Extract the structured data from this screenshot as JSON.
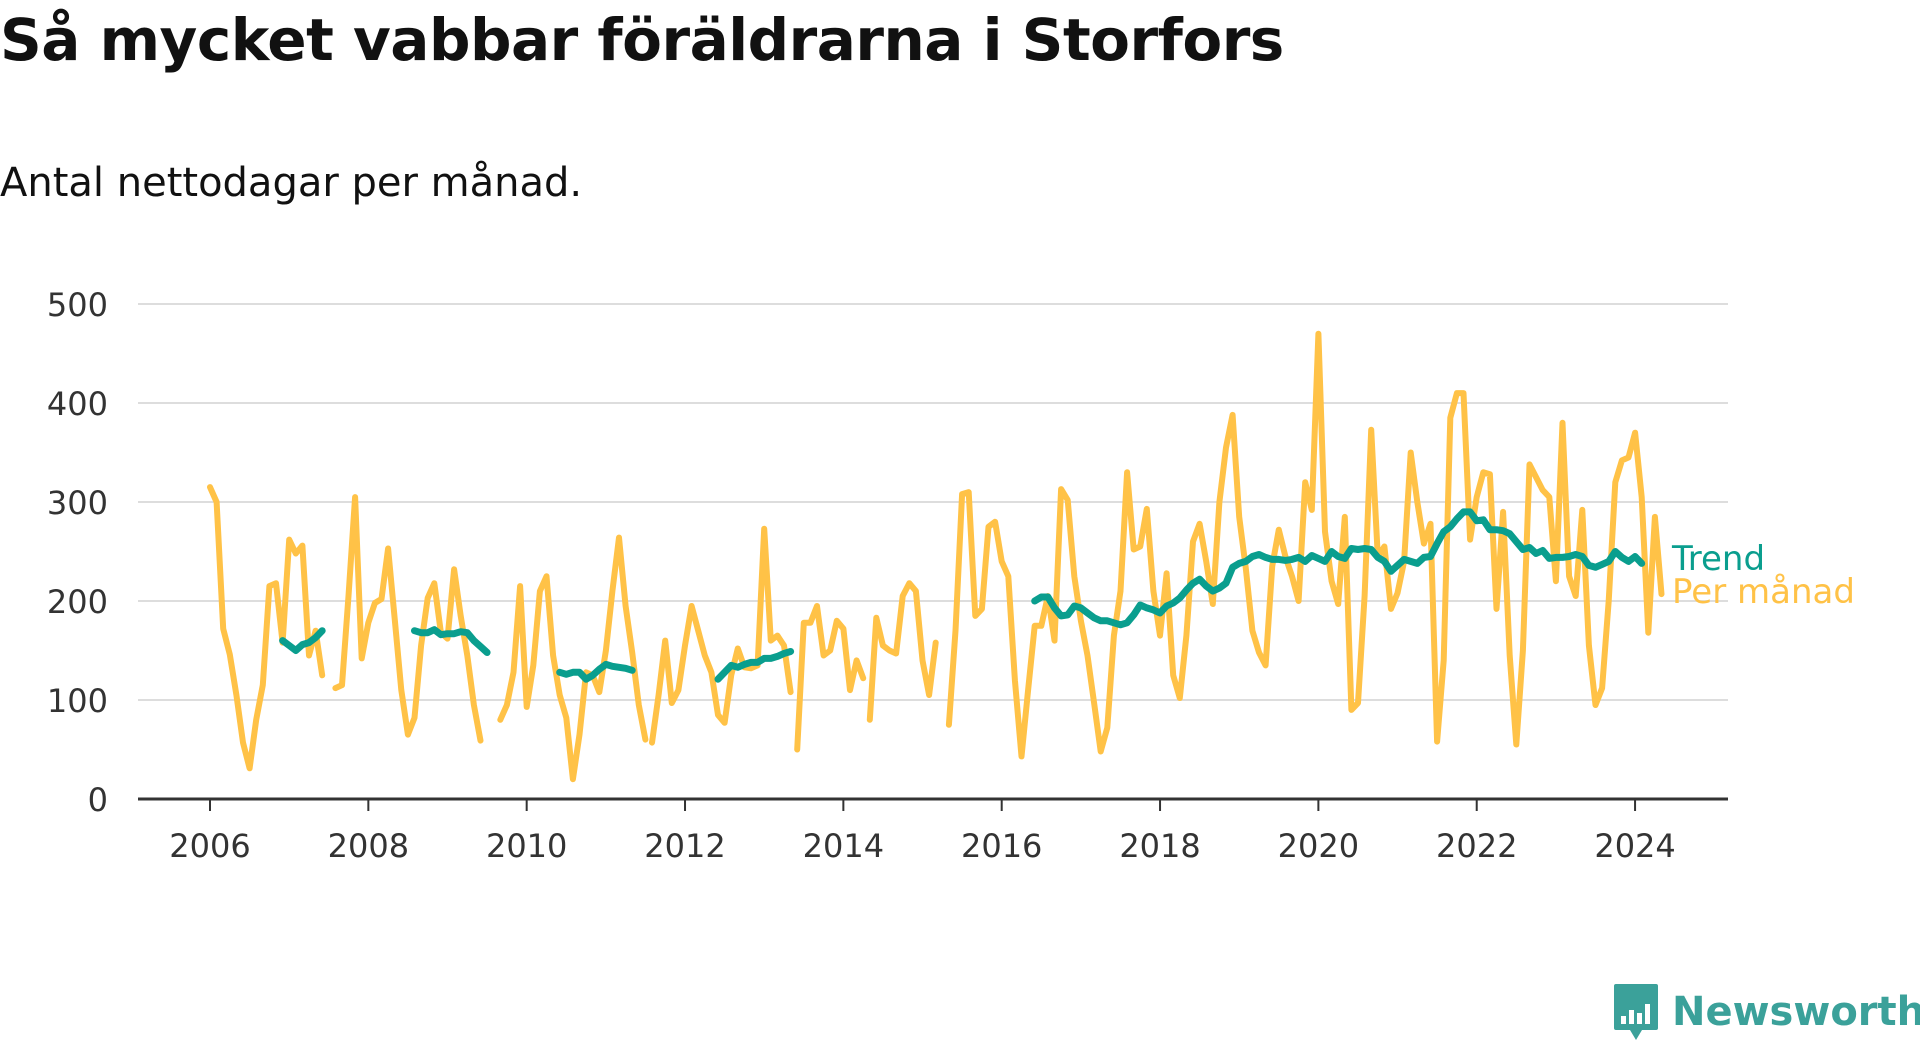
{
  "header": {
    "title": "Så mycket vabbar föräldrarna i Storfors",
    "subtitle": "Antal nettodagar per månad."
  },
  "branding": {
    "name": "Newsworthy",
    "logo_icon": "bar-chart-icon"
  },
  "colors": {
    "monthly": "#ffc247",
    "trend": "#0a9e8e",
    "grid": "#dddddd",
    "axis": "#333333",
    "text": "#333333",
    "brand": "#3ba19a"
  },
  "chart_data": {
    "type": "line",
    "title": "Så mycket vabbar föräldrarna i Storfors",
    "subtitle": "Antal nettodagar per månad.",
    "xlabel": "",
    "ylabel": "",
    "xlim": [
      "2006-01",
      "2024-06"
    ],
    "ylim": [
      0,
      500
    ],
    "x_ticks": [
      "2006",
      "2008",
      "2010",
      "2012",
      "2014",
      "2016",
      "2018",
      "2020",
      "2022",
      "2024"
    ],
    "y_ticks": [
      0,
      100,
      200,
      300,
      400,
      500
    ],
    "grid": "horizontal",
    "legend": "direct labels at line ends",
    "series": [
      {
        "name": "Per månad",
        "color": "#ffc247",
        "segments": [
          {
            "start": "2006-01",
            "values": [
              315,
              300,
              172,
              146,
              105,
              57,
              31,
              80,
              115,
              215,
              218,
              158,
              262,
              248,
              256,
              145,
              170,
              125
            ]
          },
          {
            "start": "2007-08",
            "values": [
              112,
              115,
              205,
              305,
              142,
              178,
              198,
              202,
              253,
              182,
              110,
              65,
              82,
              155,
              203,
              218,
              168,
              162,
              232,
              185,
              145,
              95,
              59
            ]
          },
          {
            "start": "2009-09",
            "values": [
              80,
              95,
              128,
              215,
              93,
              135,
              210,
              225,
              145,
              105,
              82,
              20,
              65,
              128,
              125,
              108,
              150,
              210,
              264,
              195,
              148,
              95,
              60
            ]
          },
          {
            "start": "2011-08",
            "values": [
              57,
              105,
              160,
              97,
              110,
              155,
              195,
              170,
              145,
              128,
              85,
              77,
              125,
              152,
              133,
              132,
              135,
              273,
              160,
              165,
              155,
              108
            ]
          },
          {
            "start": "2013-06",
            "values": [
              50,
              178,
              178,
              195,
              145,
              150,
              180,
              172,
              110,
              140,
              122
            ]
          },
          {
            "start": "2014-05",
            "values": [
              80,
              183,
              155,
              150,
              147,
              205,
              218,
              210,
              140,
              105,
              158
            ]
          },
          {
            "start": "2015-05",
            "values": [
              75,
              170,
              308,
              310,
              185,
              192,
              275,
              280,
              240,
              225,
              120,
              43,
              110,
              175,
              175,
              205,
              160,
              313,
              302,
              225,
              180,
              145,
              97,
              48,
              72,
              165,
              210,
              330,
              252,
              255,
              293,
              210,
              165,
              228,
              125,
              102,
              165,
              260,
              278,
              240,
              197,
              300,
              355,
              388,
              285,
              233,
              170,
              148,
              135,
              235,
              272,
              245,
              225,
              200,
              320,
              292,
              470,
              270,
              220,
              197,
              285,
              90,
              97,
              205,
              373,
              245,
              255,
              192,
              208,
              240,
              350,
              300,
              258,
              278,
              58,
              140,
              385,
              410,
              410,
              262,
              305,
              330,
              328,
              192,
              290,
              145,
              55,
              150,
              338,
              325,
              312,
              305,
              220,
              380,
              225,
              205,
              292,
              155,
              95,
              112,
              200,
              320,
              342,
              345,
              370,
              305,
              168,
              285,
              207
            ]
          }
        ]
      },
      {
        "name": "Trend",
        "color": "#0a9e8e",
        "segments": [
          {
            "start": "2006-12",
            "values": [
              160,
              155,
              150,
              156,
              158,
              163,
              170
            ]
          },
          {
            "start": "2008-08",
            "values": [
              170,
              168,
              168,
              171,
              166,
              167,
              167,
              169,
              168,
              160,
              154,
              148
            ]
          },
          {
            "start": "2010-06",
            "values": [
              128,
              126,
              128,
              128,
              121,
              125,
              131,
              136,
              134,
              133,
              132,
              130
            ]
          },
          {
            "start": "2012-06",
            "values": [
              121,
              128,
              135,
              133,
              136,
              138,
              138,
              142,
              142,
              144,
              147,
              149
            ]
          },
          {
            "start": "2016-06",
            "values": [
              200,
              204,
              204,
              193,
              185,
              186,
              195,
              193,
              188,
              183,
              180,
              180,
              178,
              176,
              178,
              186,
              196,
              193,
              191,
              188,
              195,
              198,
              203,
              211,
              218,
              222,
              215,
              210,
              213,
              218,
              234,
              238,
              240,
              245,
              247,
              244,
              242,
              242,
              241,
              242,
              244,
              240,
              246,
              243,
              240,
              250,
              245,
              243,
              253,
              252,
              253,
              252,
              244,
              240,
              230,
              236,
              242,
              240,
              238,
              244,
              245,
              258,
              270,
              275,
              283,
              290,
              290,
              281,
              282,
              272,
              272,
              271,
              268,
              260,
              252,
              254,
              248,
              251,
              243,
              244,
              244,
              245,
              247,
              245,
              236,
              234,
              237,
              240,
              250,
              244,
              240,
              245,
              238
            ]
          }
        ]
      }
    ]
  }
}
